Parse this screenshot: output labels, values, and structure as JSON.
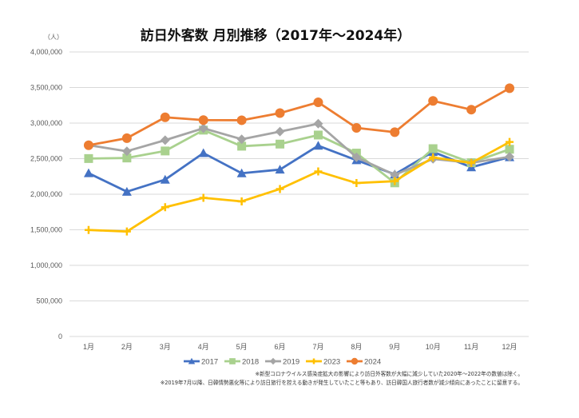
{
  "chart_data": {
    "type": "line",
    "title": "訪日外客数 月別推移（2017年～2024年）",
    "ylabel": "（人）",
    "xlabel": "",
    "ylim": [
      0,
      4000000
    ],
    "yticks": [
      0,
      500000,
      1000000,
      1500000,
      2000000,
      2500000,
      3000000,
      3500000,
      4000000
    ],
    "ytick_labels": [
      "0",
      "500,000",
      "1,000,000",
      "1,500,000",
      "2,000,000",
      "2,500,000",
      "3,000,000",
      "3,500,000",
      "4,000,000"
    ],
    "grid": true,
    "legend_position": "bottom",
    "categories": [
      "1月",
      "2月",
      "3月",
      "4月",
      "5月",
      "6月",
      "7月",
      "8月",
      "9月",
      "10月",
      "11月",
      "12月"
    ],
    "series": [
      {
        "name": "2017",
        "color": "#4472C4",
        "marker": "triangle",
        "values": [
          2295700,
          2035800,
          2205700,
          2578000,
          2294700,
          2346400,
          2682200,
          2478400,
          2280000,
          2596200,
          2378800,
          2521000
        ]
      },
      {
        "name": "2018",
        "color": "#A9D18E",
        "marker": "square",
        "values": [
          2501400,
          2509300,
          2607900,
          2900800,
          2675000,
          2704600,
          2832000,
          2578000,
          2159600,
          2640600,
          2443400,
          2632000
        ]
      },
      {
        "name": "2019",
        "color": "#A5A5A5",
        "marker": "diamond",
        "values": [
          2689300,
          2604300,
          2760100,
          2926700,
          2773100,
          2880000,
          2991200,
          2520100,
          2272900,
          2496600,
          2441300,
          2526300
        ]
      },
      {
        "name": "2023",
        "color": "#FFC000",
        "marker": "plus",
        "values": [
          1497300,
          1475500,
          1817500,
          1949100,
          1899200,
          2073300,
          2320600,
          2156900,
          2183300,
          2516500,
          2440300,
          2734000
        ]
      },
      {
        "name": "2024",
        "color": "#ED7D31",
        "marker": "circle",
        "values": [
          2688100,
          2788000,
          3081600,
          3042000,
          3040000,
          3140000,
          3292500,
          2932900,
          2872200,
          3312100,
          3188900,
          3489800
        ]
      }
    ],
    "annotations": [
      "※新型コロナウイルス感染症拡大の影響により訪日外客数が大幅に減少していた2020年～2022年の数値は除く。",
      "※2019年7月以降、日韓情勢悪化等により訪日旅行を控える動きが発生していたこと等もあり、訪日韓国人旅行者数が減少傾向にあったことに留意する。"
    ]
  }
}
